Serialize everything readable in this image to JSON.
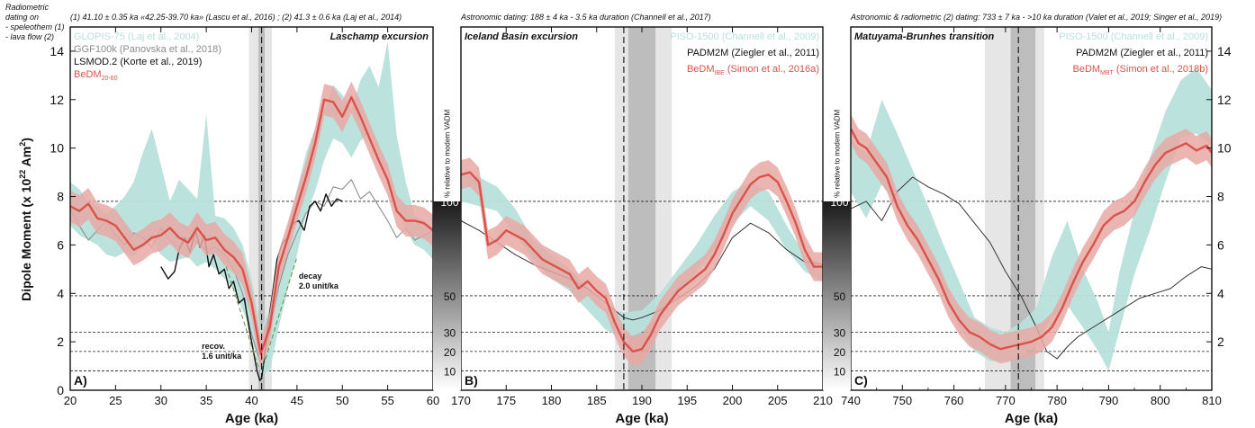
{
  "header": {
    "left_note_lines": [
      "Radiometric",
      "dating on",
      "- speleothem (1)",
      "- lava flow (2)"
    ],
    "panel_a_note": "(1) 41.10 ± 0.35 ka «42.25-39.70 ka» (Lascu et al., 2016) ; (2) 41.3 ± 0.6 ka (Laj et al., 2014)",
    "panel_b_note": "Astronomic dating: 188 ± 4 ka - 3.5 ka duration (Channell et al., 2017)",
    "panel_c_note": "Astronomic & radiometric (2) dating: 733 ± 7 ka - >10 ka duration (Valet et al., 2019; Singer et al., 2019)"
  },
  "axes": {
    "ylabel": "Dipole Moment (x 10",
    "ylabel_sup": "22",
    "ylabel_tail": " Am",
    "ylabel_sup2": "2",
    "ylabel_end": ")",
    "xlabel": "Age (ka)",
    "vadm_label": "% relative to modern VADM"
  },
  "colors": {
    "bedm": "#d9534a",
    "bedm_band": "#e8a9a4",
    "teal": "#b8e0dc",
    "grey": "#8c8c8c",
    "black": "#111111"
  },
  "chart_data": [
    {
      "type": "line",
      "panel_letter": "A)",
      "title": "Laschamp excursion",
      "xlim": [
        20,
        60
      ],
      "ylim": [
        0,
        15
      ],
      "x_ticks": [
        20,
        25,
        30,
        35,
        40,
        45,
        50,
        55,
        60
      ],
      "y_ticks": [
        0,
        2,
        4,
        6,
        8,
        10,
        12,
        14
      ],
      "dashed_levels": [
        0.8,
        1.6,
        2.4,
        3.9,
        7.8
      ],
      "legend": [
        {
          "text": "GLOPIS-75 (Laj et al., 2004)",
          "color": "#b8e0dc"
        },
        {
          "text": "GGF100k (Panovska et al., 2018)",
          "color": "#8c8c8c"
        },
        {
          "text": "LSMOD.2 (Korte et al., 2019)",
          "color": "#111111"
        },
        {
          "text": "BeDM",
          "sub": "20-60",
          "color": "#d9534a"
        }
      ],
      "shading": [
        {
          "x0": 39.7,
          "x1": 42.25,
          "color": "#e6e6e6"
        },
        {
          "x0": 40.75,
          "x1": 41.45,
          "color": "#bdbdbd"
        }
      ],
      "vline": 41.1,
      "annotations": [
        {
          "text_lines": [
            "decay",
            "2.0 unit/ka"
          ],
          "x": 45.2,
          "y": 4.6
        },
        {
          "text_lines": [
            "recov.",
            "1.6 unit/ka"
          ],
          "x": 34.5,
          "y": 1.7
        }
      ],
      "trend_lines": [
        {
          "x": [
            37.2,
            40.8
          ],
          "y": [
            5.1,
            0.9
          ]
        },
        {
          "x": [
            41.3,
            45.0
          ],
          "y": [
            1.0,
            5.5
          ]
        }
      ],
      "teal_band": {
        "x": [
          20,
          21,
          22,
          23,
          24,
          25,
          26,
          27,
          28,
          29,
          30,
          31,
          32,
          33,
          34,
          35,
          36,
          37,
          38,
          39,
          40,
          41,
          42,
          43,
          44,
          45,
          46,
          47,
          48,
          49,
          50,
          51,
          52,
          53,
          54,
          55,
          56,
          57,
          58,
          59,
          60
        ],
        "upper": [
          8.6,
          8.3,
          7.8,
          7.6,
          7.3,
          7.6,
          8.0,
          8.6,
          9.8,
          10.8,
          9.3,
          7.8,
          8.7,
          8.3,
          7.9,
          11.4,
          7.2,
          7.1,
          6.7,
          6.0,
          4.6,
          2.6,
          3.3,
          5.0,
          6.8,
          8.3,
          9.8,
          10.8,
          11.6,
          12.6,
          12.2,
          11.6,
          12.8,
          13.4,
          12.5,
          14.4,
          10.5,
          8.6,
          7.2,
          7.0,
          6.6
        ],
        "lower": [
          6.8,
          6.4,
          6.2,
          6.0,
          5.6,
          5.5,
          5.7,
          5.5,
          5.9,
          6.2,
          5.6,
          5.3,
          5.4,
          5.5,
          5.1,
          5.3,
          5.0,
          4.6,
          4.2,
          3.3,
          2.4,
          0.6,
          0.8,
          2.6,
          4.2,
          5.6,
          7.3,
          8.2,
          9.5,
          10.4,
          10.2,
          9.6,
          10.3,
          10.6,
          9.6,
          8.9,
          7.6,
          6.6,
          6.0,
          5.8,
          5.4
        ]
      },
      "ggf100k": {
        "x": [
          20,
          21,
          22,
          23,
          24,
          25,
          26,
          27,
          28,
          29,
          30,
          31,
          32,
          33,
          34,
          35,
          36,
          37,
          38,
          39,
          40,
          41,
          42,
          43,
          44,
          45,
          46,
          47,
          48,
          49,
          50,
          51,
          52,
          53,
          54,
          55,
          56,
          57,
          58,
          59,
          60
        ],
        "y": [
          7.5,
          6.8,
          6.2,
          6.6,
          7.0,
          6.4,
          6.0,
          6.5,
          6.3,
          5.9,
          6.7,
          6.2,
          5.9,
          6.3,
          6.1,
          5.8,
          5.9,
          5.6,
          5.0,
          4.0,
          2.3,
          1.1,
          2.4,
          4.3,
          5.6,
          6.5,
          7.3,
          7.8,
          7.6,
          8.4,
          8.3,
          8.7,
          7.9,
          8.2,
          7.6,
          7.0,
          6.3,
          6.7,
          6.2,
          6.4,
          6.6
        ]
      },
      "lsmod2": {
        "x": [
          30,
          30.8,
          31.5,
          32,
          32.6,
          33.2,
          33.8,
          34.3,
          34.8,
          35.3,
          35.8,
          36.4,
          37,
          37.5,
          38,
          38.6,
          39.2,
          39.7,
          40.2,
          40.6,
          40.9,
          41.1,
          41.4,
          41.8,
          42.3,
          42.8,
          43.4,
          44,
          44.6,
          45.2,
          45.8,
          46.4,
          47,
          47.6,
          48.2,
          48.8,
          49.4,
          50
        ],
        "y": [
          5.1,
          4.6,
          4.9,
          5.8,
          6.3,
          5.7,
          6.6,
          5.9,
          6.4,
          5.1,
          5.6,
          4.8,
          5.0,
          4.2,
          4.5,
          3.6,
          3.8,
          2.6,
          1.6,
          0.8,
          0.4,
          0.5,
          1.3,
          2.7,
          4.0,
          5.4,
          6.1,
          6.3,
          6.9,
          7.0,
          6.6,
          7.6,
          7.8,
          7.4,
          8.1,
          7.6,
          7.9,
          7.8
        ]
      },
      "bedm": {
        "x": [
          20,
          21,
          22,
          23,
          24,
          25,
          26,
          27,
          28,
          29,
          30,
          31,
          32,
          33,
          34,
          35,
          36,
          37,
          38,
          39,
          40,
          41,
          42,
          43,
          44,
          45,
          46,
          47,
          48,
          49,
          50,
          51,
          52,
          53,
          54,
          55,
          56,
          57,
          58,
          59,
          60
        ],
        "y": [
          7.6,
          7.4,
          7.7,
          7.1,
          7.0,
          6.8,
          6.3,
          5.8,
          6.0,
          6.3,
          6.4,
          6.7,
          6.3,
          6.1,
          6.7,
          6.2,
          6.3,
          5.8,
          5.5,
          5.0,
          3.6,
          1.5,
          2.6,
          5.1,
          6.3,
          7.6,
          8.8,
          10.2,
          12.0,
          11.9,
          11.3,
          12.1,
          11.3,
          10.4,
          9.5,
          8.7,
          7.4,
          7.0,
          7.0,
          6.9,
          6.6
        ],
        "err": 0.65
      }
    },
    {
      "type": "line",
      "panel_letter": "B)",
      "title": "Iceland Basin excursion",
      "xlim": [
        170,
        210
      ],
      "ylim": [
        0,
        15
      ],
      "x_ticks": [
        170,
        175,
        180,
        185,
        190,
        195,
        200,
        205,
        210
      ],
      "dashed_levels": [
        0.8,
        1.6,
        2.4,
        3.9,
        7.8
      ],
      "legend": [
        {
          "text": "PISO-1500 (Channell et al., 2009)",
          "color": "#b8e0dc"
        },
        {
          "text": "PADM2M (Ziegler et al., 2011)",
          "color": "#111111"
        },
        {
          "text": "BeDM",
          "sub": "IBE",
          "tail": " (Simon et al., 2016a)",
          "color": "#d9534a"
        }
      ],
      "shading": [
        {
          "x0": 187.0,
          "x1": 193.3,
          "color": "#e6e6e6"
        },
        {
          "x0": 188.5,
          "x1": 191.5,
          "color": "#bdbdbd"
        }
      ],
      "vline": 188.0,
      "teal_band": {
        "x": [
          170,
          172,
          174,
          176,
          178,
          180,
          182,
          184,
          186,
          188,
          190,
          192,
          194,
          196,
          198,
          200,
          202,
          204,
          206,
          208,
          210
        ],
        "upper": [
          9.0,
          8.8,
          8.4,
          7.5,
          6.2,
          5.6,
          5.0,
          4.3,
          3.4,
          3.2,
          3.3,
          4.0,
          5.0,
          6.0,
          7.2,
          8.2,
          8.6,
          8.2,
          6.8,
          5.6,
          5.2
        ],
        "lower": [
          7.8,
          7.6,
          7.4,
          6.4,
          5.4,
          4.6,
          4.1,
          3.3,
          2.5,
          2.1,
          2.4,
          3.1,
          4.0,
          4.9,
          5.8,
          6.9,
          7.6,
          7.0,
          5.8,
          4.9,
          4.5
        ]
      },
      "padm2m": {
        "x": [
          170,
          172,
          174,
          176,
          178,
          180,
          182,
          184,
          186,
          188,
          189,
          190,
          192,
          194,
          196,
          198,
          200,
          202,
          204,
          206,
          208,
          210
        ],
        "y": [
          7.0,
          6.6,
          6.1,
          5.6,
          5.2,
          4.9,
          4.6,
          4.2,
          3.6,
          3.0,
          2.9,
          3.0,
          3.3,
          3.8,
          4.3,
          5.0,
          6.3,
          6.9,
          6.5,
          5.8,
          5.3,
          5.2
        ]
      },
      "bedm": {
        "x": [
          170,
          171,
          172,
          173,
          174,
          175,
          176,
          177,
          178,
          179,
          180,
          181,
          182,
          183,
          184,
          185,
          186,
          187,
          188,
          189,
          190,
          191,
          192,
          193,
          194,
          195,
          196,
          197,
          198,
          199,
          200,
          201,
          202,
          203,
          204,
          205,
          206,
          207,
          208,
          209,
          210
        ],
        "y": [
          8.9,
          9.0,
          8.6,
          6.0,
          6.2,
          6.6,
          6.4,
          6.2,
          5.8,
          5.4,
          5.2,
          5.0,
          4.8,
          4.2,
          4.5,
          4.1,
          3.8,
          2.8,
          2.0,
          1.6,
          1.7,
          2.3,
          3.1,
          3.6,
          4.1,
          4.4,
          4.7,
          5.0,
          5.6,
          6.4,
          7.3,
          7.9,
          8.5,
          8.8,
          8.9,
          8.6,
          7.8,
          6.9,
          5.8,
          5.1,
          5.1
        ],
        "err": 0.6
      }
    },
    {
      "type": "line",
      "panel_letter": "C)",
      "title": "Matuyama-Brunhes transition",
      "xlim": [
        740,
        810
      ],
      "ylim": [
        0,
        15
      ],
      "x_ticks": [
        740,
        750,
        760,
        770,
        780,
        790,
        800,
        810
      ],
      "x_minor": [
        745,
        755,
        765,
        775,
        785,
        795,
        805
      ],
      "y_ticks_right": [
        2,
        4,
        6,
        8,
        10,
        12,
        14
      ],
      "dashed_levels": [
        0.8,
        1.6,
        2.4,
        3.9,
        7.8
      ],
      "legend": [
        {
          "text": "PISO-1500 (Channell et al., 2009)",
          "color": "#b8e0dc"
        },
        {
          "text": "PADM2M (Ziegler et al., 2011)",
          "color": "#111111"
        },
        {
          "text": "BeDM",
          "sub": "MBT",
          "tail": " (Simon et al., 2018b)",
          "color": "#d9534a"
        }
      ],
      "shading": [
        {
          "x0": 766.0,
          "x1": 777.5,
          "color": "#e6e6e6"
        },
        {
          "x0": 771.0,
          "x1": 775.8,
          "color": "#bdbdbd"
        }
      ],
      "vline": 772.5,
      "teal_band": {
        "x": [
          740,
          743,
          746,
          749,
          752,
          755,
          758,
          761,
          764,
          767,
          770,
          773,
          776,
          779,
          782,
          785,
          788,
          790,
          792,
          795,
          798,
          801,
          804,
          807,
          810
        ],
        "upper": [
          10.3,
          9.8,
          12.0,
          10.6,
          9.1,
          7.6,
          6.0,
          4.5,
          3.0,
          2.6,
          2.4,
          2.8,
          3.4,
          5.5,
          7.0,
          5.0,
          3.6,
          2.4,
          4.8,
          7.4,
          9.6,
          11.5,
          12.8,
          13.3,
          12.4
        ],
        "lower": [
          8.2,
          7.1,
          8.5,
          7.6,
          6.5,
          5.2,
          4.0,
          2.6,
          1.6,
          1.2,
          1.2,
          1.4,
          1.9,
          3.0,
          3.5,
          2.6,
          1.6,
          0.8,
          2.4,
          4.8,
          6.6,
          8.6,
          10.4,
          10.6,
          10.1
        ]
      },
      "padm2m": {
        "x": [
          740,
          743,
          746,
          749,
          752,
          755,
          758,
          761,
          764,
          767,
          770,
          773,
          776,
          778,
          780,
          782,
          784,
          787,
          790,
          793,
          796,
          799,
          802,
          805,
          808,
          810
        ],
        "y": [
          7.5,
          7.8,
          7.0,
          8.2,
          8.8,
          8.4,
          8.1,
          7.7,
          6.9,
          6.1,
          4.9,
          3.9,
          2.6,
          1.6,
          1.3,
          1.8,
          2.2,
          2.6,
          3.0,
          3.4,
          3.8,
          4.0,
          4.2,
          4.7,
          5.1,
          5.0
        ]
      },
      "bedm": {
        "x": [
          740,
          741.5,
          743,
          745,
          747,
          749,
          751,
          753,
          755,
          757,
          759,
          761,
          763,
          765,
          767,
          769,
          771,
          773,
          775,
          777,
          779,
          781,
          783,
          785,
          787,
          789,
          791,
          793,
          795,
          797,
          799,
          801,
          803,
          805,
          807,
          809,
          810
        ],
        "y": [
          10.8,
          10.2,
          10.0,
          9.4,
          8.8,
          7.6,
          6.8,
          6.2,
          5.4,
          4.6,
          3.6,
          2.9,
          2.4,
          2.2,
          1.9,
          1.7,
          1.8,
          1.9,
          2.0,
          2.2,
          2.6,
          3.4,
          4.4,
          5.3,
          6.0,
          6.8,
          7.2,
          7.4,
          7.8,
          8.6,
          9.3,
          9.8,
          10.0,
          10.2,
          9.9,
          10.1,
          9.8
        ],
        "err": 0.6
      }
    }
  ],
  "vadm_scale": {
    "labels": [
      {
        "text": "100",
        "y": 7.8
      },
      {
        "text": "50",
        "y": 3.9
      },
      {
        "text": "30",
        "y": 2.4
      },
      {
        "text": "20",
        "y": 1.6
      },
      {
        "text": "10",
        "y": 0.8
      }
    ]
  }
}
